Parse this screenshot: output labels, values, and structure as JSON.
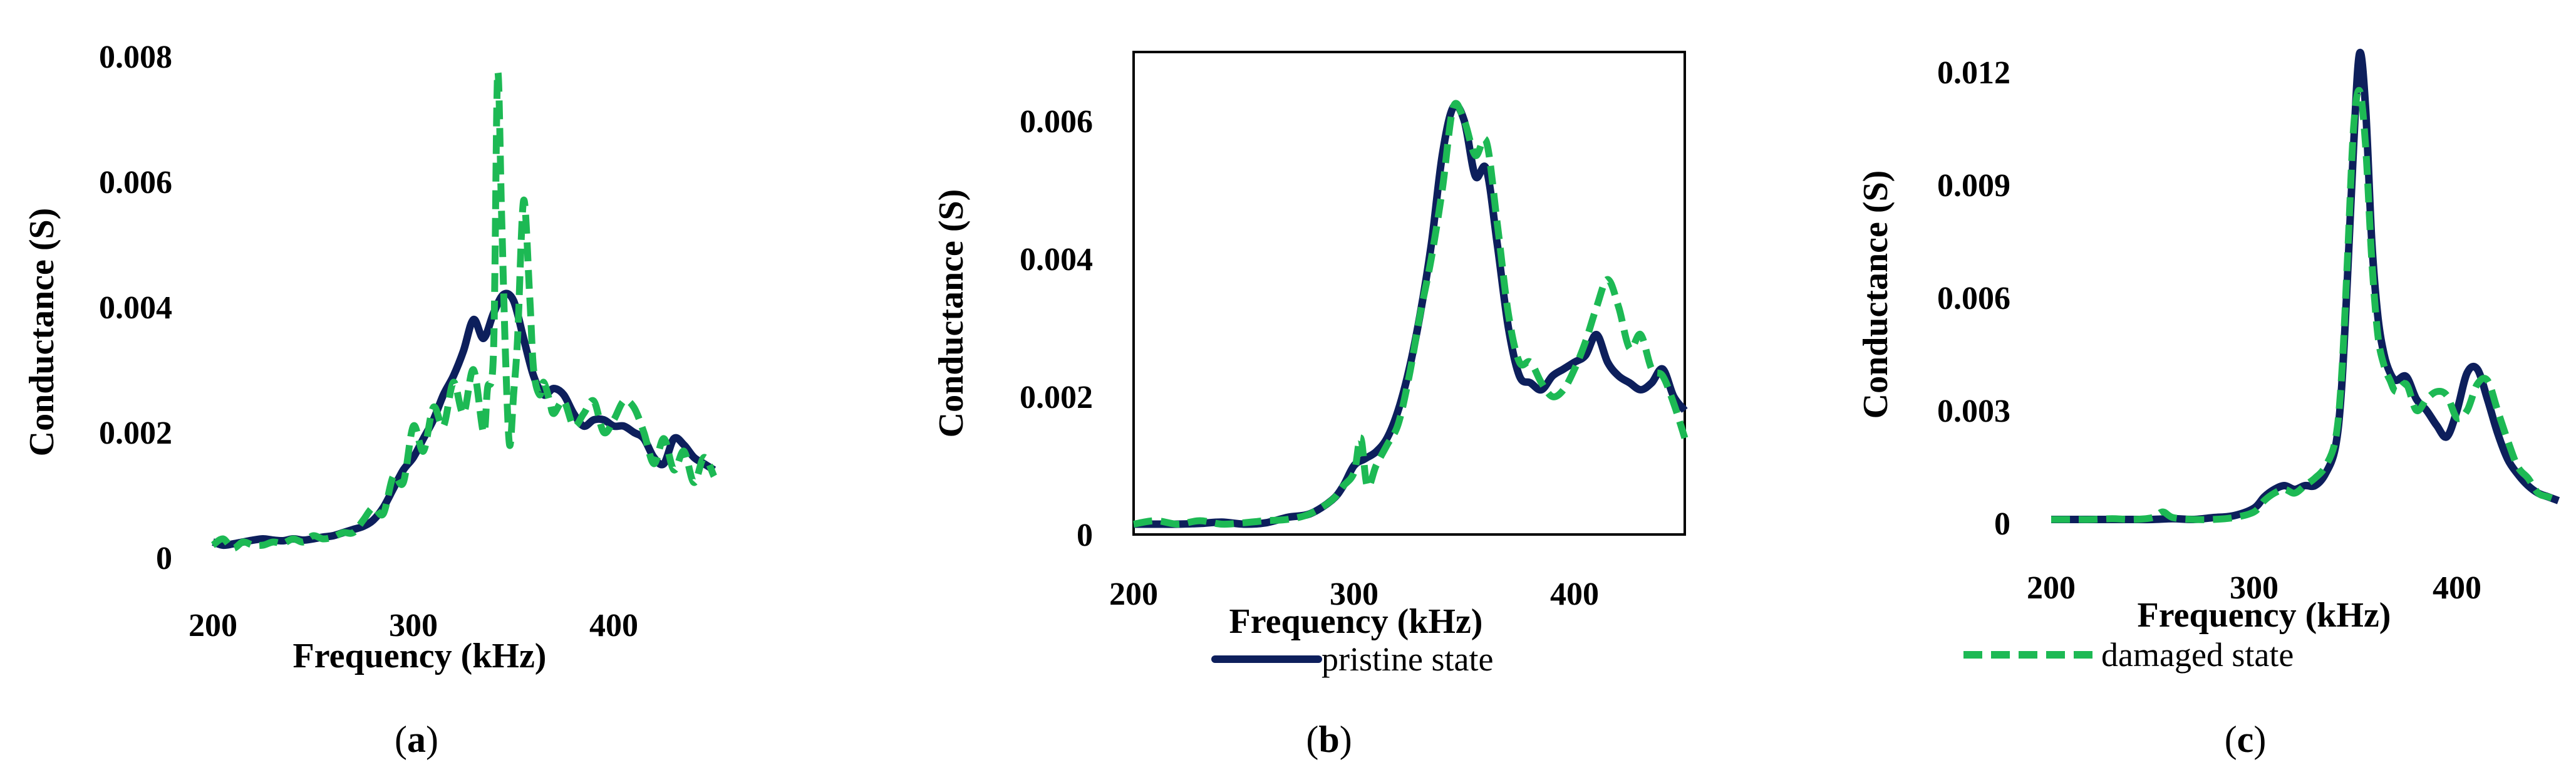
{
  "colors": {
    "pristine": "#0d1f5c",
    "damaged": "#1db954",
    "axis": "#000000"
  },
  "legend": {
    "pristine_label": "pristine state",
    "damaged_label": "damaged state"
  },
  "chart_data": [
    {
      "type": "line",
      "caption_letter": "a",
      "xlabel": "Frequency (kHz)",
      "ylabel": "Conductance (S)",
      "xlim": [
        200,
        450
      ],
      "ylim": [
        0,
        0.008
      ],
      "xticks": [
        200,
        300,
        400
      ],
      "xtick_labels": [
        "200",
        "300",
        "400"
      ],
      "yticks": [
        0,
        0.002,
        0.004,
        0.006,
        0.008
      ],
      "ytick_labels": [
        "0",
        "0.002",
        "0.004",
        "0.006",
        "0.008"
      ],
      "frame": false,
      "series": [
        {
          "name": "pristine state",
          "x": [
            200,
            205,
            210,
            215,
            220,
            225,
            230,
            235,
            240,
            245,
            250,
            255,
            260,
            265,
            270,
            275,
            280,
            285,
            290,
            295,
            300,
            305,
            310,
            315,
            320,
            325,
            330,
            335,
            340,
            345,
            350,
            355,
            360,
            365,
            370,
            375,
            380,
            385,
            390,
            395,
            400,
            405,
            410,
            415,
            420,
            425,
            430,
            435,
            440,
            445,
            450
          ],
          "y": [
            0.00025,
            0.0002,
            0.00022,
            0.00025,
            0.00028,
            0.0003,
            0.00028,
            0.00027,
            0.0003,
            0.00028,
            0.0003,
            0.00033,
            0.00035,
            0.0004,
            0.00045,
            0.0005,
            0.0006,
            0.0008,
            0.0011,
            0.0014,
            0.0016,
            0.0019,
            0.0022,
            0.0026,
            0.0029,
            0.0033,
            0.0038,
            0.0035,
            0.0039,
            0.0042,
            0.0041,
            0.0035,
            0.0029,
            0.0026,
            0.0027,
            0.0026,
            0.0023,
            0.0021,
            0.0022,
            0.0022,
            0.0021,
            0.0021,
            0.002,
            0.0019,
            0.0016,
            0.0015,
            0.0019,
            0.0018,
            0.0016,
            0.0015,
            0.0014
          ]
        },
        {
          "name": "damaged state",
          "x": [
            200,
            205,
            210,
            215,
            220,
            225,
            230,
            235,
            240,
            245,
            250,
            255,
            260,
            265,
            270,
            275,
            280,
            285,
            290,
            295,
            300,
            305,
            310,
            315,
            320,
            325,
            330,
            335,
            337,
            340,
            342,
            344,
            346,
            348,
            350,
            352,
            355,
            358,
            360,
            363,
            365,
            368,
            370,
            375,
            380,
            385,
            390,
            395,
            400,
            405,
            410,
            415,
            420,
            425,
            430,
            435,
            440,
            445,
            450
          ],
          "y": [
            0.0002,
            0.0003,
            0.00015,
            0.00025,
            0.0002,
            0.0002,
            0.00025,
            0.00023,
            0.0003,
            0.00025,
            0.00035,
            0.0003,
            0.00033,
            0.0004,
            0.0004,
            0.0006,
            0.0008,
            0.0007,
            0.0013,
            0.0012,
            0.0021,
            0.0017,
            0.0024,
            0.0021,
            0.0028,
            0.0023,
            0.003,
            0.002,
            0.0027,
            0.0033,
            0.0077,
            0.0055,
            0.0032,
            0.0018,
            0.0026,
            0.0035,
            0.0057,
            0.0042,
            0.003,
            0.0026,
            0.0028,
            0.0025,
            0.0023,
            0.0025,
            0.0021,
            0.0023,
            0.0025,
            0.002,
            0.0022,
            0.0025,
            0.0024,
            0.002,
            0.0015,
            0.0019,
            0.0014,
            0.0017,
            0.0012,
            0.0016,
            0.0013
          ]
        }
      ]
    },
    {
      "type": "line",
      "caption_letter": "b",
      "xlabel": "Frequency (kHz)",
      "ylabel": "Conductance (S)",
      "xlim": [
        200,
        450
      ],
      "ylim": [
        0,
        0.007
      ],
      "xticks": [
        200,
        300,
        400
      ],
      "xtick_labels": [
        "200",
        "300",
        "400"
      ],
      "yticks": [
        0,
        0.002,
        0.004,
        0.006
      ],
      "ytick_labels": [
        "0",
        "0.002",
        "0.004",
        "0.006"
      ],
      "frame": true,
      "series": [
        {
          "name": "pristine state",
          "x": [
            200,
            210,
            220,
            230,
            240,
            250,
            260,
            270,
            280,
            290,
            295,
            300,
            305,
            310,
            315,
            320,
            325,
            330,
            335,
            340,
            345,
            350,
            355,
            360,
            365,
            370,
            375,
            380,
            385,
            390,
            395,
            400,
            405,
            410,
            415,
            420,
            425,
            430,
            435,
            440,
            445,
            450
          ],
          "y": [
            0.00015,
            0.00015,
            0.00015,
            0.00016,
            0.00018,
            0.00015,
            0.00017,
            0.00025,
            0.0003,
            0.0005,
            0.0007,
            0.001,
            0.0011,
            0.0012,
            0.0014,
            0.0018,
            0.0024,
            0.0032,
            0.0042,
            0.0055,
            0.0062,
            0.006,
            0.0052,
            0.0053,
            0.0042,
            0.003,
            0.0023,
            0.0022,
            0.0021,
            0.0023,
            0.0024,
            0.0025,
            0.0026,
            0.0029,
            0.0025,
            0.0023,
            0.0022,
            0.0021,
            0.0022,
            0.0024,
            0.002,
            0.0018
          ]
        },
        {
          "name": "damaged state",
          "x": [
            200,
            210,
            220,
            230,
            240,
            250,
            260,
            270,
            280,
            290,
            295,
            300,
            303,
            306,
            310,
            315,
            320,
            325,
            330,
            335,
            340,
            345,
            350,
            355,
            360,
            365,
            370,
            375,
            380,
            385,
            390,
            395,
            400,
            405,
            410,
            415,
            420,
            425,
            430,
            435,
            440,
            445,
            450
          ],
          "y": [
            0.00015,
            0.0002,
            0.00015,
            0.0002,
            0.00015,
            0.00017,
            0.0002,
            0.00022,
            0.0003,
            0.0005,
            0.0007,
            0.0009,
            0.0014,
            0.0007,
            0.001,
            0.0013,
            0.0016,
            0.0023,
            0.0032,
            0.004,
            0.005,
            0.0062,
            0.006,
            0.0055,
            0.0057,
            0.0045,
            0.0032,
            0.0025,
            0.0025,
            0.0022,
            0.002,
            0.0021,
            0.0024,
            0.0028,
            0.0033,
            0.0037,
            0.0033,
            0.0027,
            0.0029,
            0.0024,
            0.0023,
            0.0019,
            0.0014
          ]
        }
      ]
    },
    {
      "type": "line",
      "caption_letter": "c",
      "xlabel": "Frequency (kHz)",
      "ylabel": "Conductance (S)",
      "xlim": [
        200,
        450
      ],
      "ylim": [
        0,
        0.013
      ],
      "xticks": [
        200,
        300,
        400
      ],
      "xtick_labels": [
        "200",
        "300",
        "400"
      ],
      "yticks": [
        0,
        0.003,
        0.006,
        0.009,
        0.012
      ],
      "ytick_labels": [
        "0",
        "0.003",
        "0.006",
        "0.009",
        "0.012"
      ],
      "frame": false,
      "series": [
        {
          "name": "pristine state",
          "x": [
            200,
            210,
            220,
            230,
            240,
            250,
            260,
            270,
            280,
            290,
            300,
            305,
            310,
            315,
            320,
            325,
            330,
            335,
            340,
            343,
            346,
            349,
            352,
            355,
            358,
            361,
            364,
            367,
            370,
            375,
            380,
            385,
            390,
            395,
            400,
            405,
            410,
            415,
            420,
            425,
            430,
            435,
            440,
            445,
            450
          ],
          "y": [
            0.0001,
            0.0001,
            0.0001,
            0.0001,
            0.0001,
            0.0001,
            0.00012,
            0.0001,
            0.00015,
            0.0002,
            0.0004,
            0.0007,
            0.0009,
            0.001,
            0.0009,
            0.001,
            0.001,
            0.0013,
            0.002,
            0.0035,
            0.0065,
            0.01,
            0.0125,
            0.011,
            0.0075,
            0.0055,
            0.0045,
            0.004,
            0.0038,
            0.0039,
            0.0033,
            0.003,
            0.0026,
            0.0023,
            0.003,
            0.004,
            0.0041,
            0.0033,
            0.0024,
            0.0017,
            0.0013,
            0.001,
            0.0008,
            0.0007,
            0.0006
          ]
        },
        {
          "name": "damaged state",
          "x": [
            200,
            210,
            220,
            230,
            240,
            250,
            255,
            260,
            270,
            280,
            290,
            300,
            305,
            310,
            315,
            320,
            325,
            330,
            335,
            340,
            343,
            346,
            349,
            352,
            355,
            358,
            361,
            364,
            367,
            370,
            375,
            380,
            385,
            390,
            395,
            400,
            405,
            410,
            415,
            420,
            425,
            430,
            435,
            440,
            445,
            450
          ],
          "y": [
            0.0001,
            0.0001,
            0.0001,
            0.00012,
            0.0001,
            0.00015,
            0.0003,
            0.00015,
            0.0001,
            0.0001,
            0.00015,
            0.0003,
            0.0006,
            0.0008,
            0.0009,
            0.0008,
            0.001,
            0.0012,
            0.0015,
            0.0022,
            0.0038,
            0.007,
            0.0105,
            0.0115,
            0.01,
            0.007,
            0.005,
            0.0042,
            0.0038,
            0.0035,
            0.0037,
            0.003,
            0.0033,
            0.0035,
            0.0034,
            0.0028,
            0.003,
            0.0037,
            0.0038,
            0.003,
            0.0022,
            0.0015,
            0.0012,
            0.0008,
            0.0007,
            0.0006
          ]
        }
      ]
    }
  ]
}
